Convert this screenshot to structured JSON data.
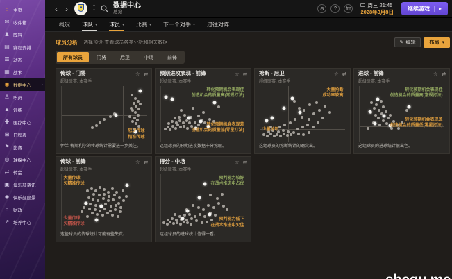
{
  "sidebar": {
    "items": [
      {
        "id": "home",
        "label": "主页",
        "icon": "⌂",
        "active": false
      },
      {
        "id": "inbox",
        "label": "收件箱",
        "icon": "✉",
        "active": false
      },
      {
        "id": "squad",
        "label": "阵容",
        "icon": "♟",
        "active": false
      },
      {
        "id": "schedule",
        "label": "赛程安排",
        "icon": "▤",
        "active": false
      },
      {
        "id": "dynamics",
        "label": "动态",
        "icon": "☰",
        "active": false
      },
      {
        "id": "tactics",
        "label": "战术",
        "icon": "▦",
        "active": false
      },
      {
        "id": "data-hub",
        "label": "数据中心",
        "icon": "◉",
        "active": true
      },
      {
        "id": "staff",
        "label": "职员",
        "icon": "♙",
        "active": false
      },
      {
        "id": "training",
        "label": "训练",
        "icon": "▲",
        "active": false
      },
      {
        "id": "medical-centre",
        "label": "医疗中心",
        "icon": "✚",
        "active": false
      },
      {
        "id": "calendar",
        "label": "日程表",
        "icon": "⊞",
        "active": false
      },
      {
        "id": "competitions",
        "label": "比赛",
        "icon": "⚑",
        "active": false
      },
      {
        "id": "scouting",
        "label": "球探中心",
        "icon": "◎",
        "active": false
      },
      {
        "id": "transfers",
        "label": "转会",
        "icon": "⇄",
        "active": false
      },
      {
        "id": "club-info",
        "label": "俱乐部资讯",
        "icon": "▣",
        "active": false
      },
      {
        "id": "club-vision",
        "label": "俱乐部愿景",
        "icon": "◈",
        "active": false
      },
      {
        "id": "finances",
        "label": "财政",
        "icon": "¤",
        "active": false
      },
      {
        "id": "development-centre",
        "label": "培养中心",
        "icon": "↗",
        "active": false
      }
    ]
  },
  "topbar": {
    "title": "数据中心",
    "subtitle": "总览",
    "icon_buttons": [
      {
        "id": "settings-icon",
        "glyph": "⚙"
      },
      {
        "id": "help-icon",
        "glyph": "?"
      },
      {
        "id": "fm-logo-icon",
        "glyph": "fm"
      }
    ],
    "datetime_line1": "周三 21:45",
    "datetime_line2": "2028年3月8日",
    "continue_label": "继续游戏",
    "continue_arrow": "▸"
  },
  "tabs": [
    {
      "label": "概况",
      "dropdown": false,
      "underline": null
    },
    {
      "label": "球队",
      "dropdown": true,
      "underline": "white"
    },
    {
      "label": "球员",
      "dropdown": true,
      "underline": "orange"
    },
    {
      "label": "比赛",
      "dropdown": true,
      "underline": null
    },
    {
      "label": "下一个对手",
      "dropdown": true,
      "underline": null
    },
    {
      "label": "过往对阵",
      "dropdown": false,
      "underline": null
    }
  ],
  "subheader": {
    "title": "球员分析",
    "description": "选择预设-查看球员各类分析和相关数据",
    "edit_label": "编辑",
    "edit_icon": "✎",
    "layout_label": "布局",
    "layout_caret": "▾"
  },
  "filters": {
    "active_index": 0,
    "options": [
      "所有球员",
      "门将",
      "后卫",
      "中场",
      "前锋"
    ]
  },
  "panel_icons": {
    "favorite": "☆",
    "expand": "⇄"
  },
  "accent_colors": {
    "orange": "#e9a43c",
    "green": "#93a860",
    "red": "#bd5348",
    "purple": "#6a4fd8"
  },
  "watermark": "shequ.me",
  "chart_data": [
    {
      "type": "scatter",
      "title": "传球 - 门将",
      "subtitle": "超级联赛, 本赛季",
      "caption": "伊兰-梅斯利尔的传球统计需要进一步关注。",
      "vline_pct": 72,
      "hline_pct": 52,
      "annotations": [
        {
          "pos": "br",
          "color": "orange",
          "lines": [
            "较少传球",
            "精准传球"
          ]
        }
      ],
      "points_gray": [
        [
          83,
          16
        ],
        [
          87,
          22
        ],
        [
          90,
          27
        ],
        [
          85,
          31
        ],
        [
          88,
          36
        ],
        [
          91,
          41
        ],
        [
          84,
          44
        ],
        [
          87,
          48
        ],
        [
          90,
          52
        ],
        [
          86,
          57
        ],
        [
          89,
          61
        ],
        [
          84,
          64
        ],
        [
          88,
          68
        ],
        [
          91,
          73
        ],
        [
          86,
          77
        ],
        [
          80,
          55
        ],
        [
          62,
          50
        ],
        [
          57,
          55
        ],
        [
          50,
          60
        ],
        [
          45,
          66
        ],
        [
          41,
          71
        ],
        [
          36,
          75
        ],
        [
          93,
          33
        ],
        [
          82,
          40
        ]
      ],
      "points_white": [
        [
          93,
          9
        ],
        [
          64,
          53
        ],
        [
          87,
          83
        ]
      ]
    },
    {
      "type": "scatter",
      "title": "预期进攻表现 - 前锋",
      "subtitle": "超级联赛, 本赛季",
      "caption": "这组球员的预期进攻数据十分抢眼。",
      "vline_pct": 28,
      "hline_pct": 62,
      "annotations": [
        {
          "pos": "tr",
          "color": "green",
          "lines": [
            "转化预期机会表现佳",
            "创造机会的质量高(常规打法)"
          ]
        },
        {
          "pos": "br2",
          "color": "orange",
          "lines": [
            "转化预期机会表现差",
            "创造机会的质量低(零星打法)"
          ]
        }
      ],
      "points_gray": [
        [
          5,
          78
        ],
        [
          8,
          74
        ],
        [
          11,
          79
        ],
        [
          14,
          72
        ],
        [
          17,
          76
        ],
        [
          20,
          70
        ],
        [
          23,
          74
        ],
        [
          9,
          68
        ],
        [
          13,
          64
        ],
        [
          18,
          66
        ],
        [
          22,
          62
        ],
        [
          26,
          66
        ],
        [
          30,
          62
        ],
        [
          34,
          66
        ],
        [
          27,
          72
        ],
        [
          31,
          76
        ],
        [
          36,
          72
        ],
        [
          40,
          66
        ],
        [
          44,
          70
        ],
        [
          48,
          62
        ],
        [
          52,
          66
        ],
        [
          57,
          60
        ],
        [
          62,
          64
        ],
        [
          35,
          56
        ],
        [
          28,
          52
        ],
        [
          21,
          56
        ],
        [
          16,
          58
        ],
        [
          44,
          54
        ],
        [
          50,
          48
        ],
        [
          24,
          44
        ],
        [
          38,
          40
        ],
        [
          68,
          38
        ]
      ],
      "points_white": [
        [
          6,
          20
        ],
        [
          13,
          24
        ],
        [
          63,
          30
        ],
        [
          33,
          58
        ],
        [
          47,
          64
        ],
        [
          56,
          72
        ],
        [
          41,
          76
        ]
      ]
    },
    {
      "type": "scatter",
      "title": "抢断 - 后卫",
      "subtitle": "超级联赛, 本赛季",
      "caption": "这组球员的抢断统计的确突出。",
      "vline_pct": 33,
      "hline_pct": 77,
      "annotations": [
        {
          "pos": "tr",
          "color": "orange",
          "lines": [
            "大量抢断",
            "成功率较高"
          ]
        },
        {
          "pos": "bl",
          "color": "orange",
          "lines": [
            "少量抢断"
          ]
        }
      ],
      "points_gray": [
        [
          4,
          88
        ],
        [
          8,
          90
        ],
        [
          12,
          86
        ],
        [
          16,
          90
        ],
        [
          20,
          87
        ],
        [
          24,
          90
        ],
        [
          28,
          86
        ],
        [
          32,
          89
        ],
        [
          36,
          87
        ],
        [
          10,
          82
        ],
        [
          15,
          80
        ],
        [
          21,
          82
        ],
        [
          27,
          80
        ],
        [
          33,
          82
        ],
        [
          39,
          84
        ],
        [
          45,
          86
        ],
        [
          51,
          88
        ],
        [
          57,
          84
        ],
        [
          44,
          78
        ],
        [
          50,
          74
        ],
        [
          56,
          70
        ],
        [
          62,
          74
        ],
        [
          68,
          66
        ],
        [
          74,
          58
        ],
        [
          57,
          60
        ],
        [
          49,
          56
        ],
        [
          41,
          60
        ],
        [
          35,
          66
        ],
        [
          29,
          70
        ],
        [
          23,
          74
        ],
        [
          63,
          50
        ],
        [
          70,
          44
        ],
        [
          52,
          44
        ],
        [
          46,
          40
        ],
        [
          58,
          34
        ],
        [
          40,
          28
        ],
        [
          76,
          36
        ],
        [
          82,
          48
        ],
        [
          66,
          30
        ],
        [
          12,
          74
        ]
      ],
      "points_white": [
        [
          38,
          22
        ],
        [
          14,
          57
        ],
        [
          7,
          63
        ],
        [
          47,
          47
        ],
        [
          28,
          40
        ]
      ]
    },
    {
      "type": "scatter",
      "title": "进球 - 前锋",
      "subtitle": "超级联赛, 本赛季",
      "caption": "这组球员的进球统计很出色。",
      "vline_pct": 35,
      "hline_pct": 72,
      "annotations": [
        {
          "pos": "tr",
          "color": "green",
          "lines": [
            "转化预期机会表现佳",
            "创造机会的质量高(常规打法)"
          ]
        },
        {
          "pos": "mr",
          "color": "orange",
          "lines": [
            "转化预期机会表现差",
            "创造机会的质量低(零星打法)"
          ]
        }
      ],
      "points_gray": [
        [
          14,
          30
        ],
        [
          20,
          34
        ],
        [
          25,
          28
        ],
        [
          17,
          40
        ],
        [
          23,
          44
        ],
        [
          28,
          38
        ],
        [
          13,
          48
        ],
        [
          19,
          52
        ],
        [
          26,
          50
        ],
        [
          31,
          46
        ],
        [
          36,
          52
        ],
        [
          22,
          58
        ],
        [
          28,
          62
        ],
        [
          34,
          58
        ],
        [
          40,
          64
        ],
        [
          16,
          66
        ],
        [
          24,
          70
        ],
        [
          32,
          68
        ],
        [
          44,
          70
        ],
        [
          50,
          66
        ],
        [
          56,
          44
        ],
        [
          10,
          76
        ],
        [
          38,
          76
        ],
        [
          46,
          76
        ]
      ],
      "points_white": [
        [
          21,
          24
        ],
        [
          12,
          46
        ],
        [
          29,
          54
        ],
        [
          18,
          68
        ],
        [
          36,
          71
        ],
        [
          58,
          38
        ]
      ]
    },
    {
      "type": "scatter",
      "title": "传球 - 前锋",
      "subtitle": "超级联赛, 本赛季",
      "caption": "这些球员的传球统计可能有些失真。",
      "vline_pct": 48,
      "hline_pct": 55,
      "annotations": [
        {
          "pos": "tl",
          "color": "orange",
          "lines": [
            "大量传球",
            "欠精准传球"
          ]
        },
        {
          "pos": "bl2",
          "color": "red",
          "lines": [
            "少量传球",
            "欠精准传球"
          ]
        }
      ],
      "points_gray": [
        [
          30,
          30
        ],
        [
          35,
          26
        ],
        [
          40,
          30
        ],
        [
          45,
          24
        ],
        [
          50,
          28
        ],
        [
          55,
          32
        ],
        [
          60,
          26
        ],
        [
          65,
          32
        ],
        [
          38,
          36
        ],
        [
          44,
          38
        ],
        [
          50,
          36
        ],
        [
          56,
          40
        ],
        [
          62,
          38
        ],
        [
          68,
          42
        ],
        [
          32,
          42
        ],
        [
          37,
          46
        ],
        [
          43,
          48
        ],
        [
          49,
          44
        ],
        [
          55,
          48
        ],
        [
          61,
          46
        ],
        [
          67,
          52
        ],
        [
          73,
          48
        ],
        [
          28,
          52
        ],
        [
          34,
          54
        ],
        [
          40,
          56
        ],
        [
          46,
          58
        ],
        [
          52,
          54
        ],
        [
          58,
          58
        ],
        [
          64,
          56
        ],
        [
          70,
          60
        ],
        [
          26,
          60
        ],
        [
          33,
          62
        ],
        [
          39,
          64
        ],
        [
          45,
          66
        ],
        [
          51,
          62
        ],
        [
          57,
          66
        ],
        [
          63,
          64
        ],
        [
          69,
          68
        ],
        [
          36,
          70
        ],
        [
          42,
          72
        ],
        [
          48,
          74
        ],
        [
          54,
          70
        ],
        [
          60,
          74
        ],
        [
          30,
          76
        ],
        [
          66,
          76
        ],
        [
          24,
          68
        ],
        [
          76,
          40
        ],
        [
          72,
          30
        ]
      ],
      "points_white": [
        [
          77,
          20
        ],
        [
          29,
          53
        ],
        [
          47,
          57
        ],
        [
          41,
          83
        ]
      ]
    },
    {
      "type": "scatter",
      "title": "得分 - 中场",
      "subtitle": "超级联赛, 本赛季",
      "caption": "这组球员的进球统计值得一看。",
      "vline_pct": 30,
      "hline_pct": 80,
      "annotations": [
        {
          "pos": "tr",
          "color": "green",
          "lines": [
            "预判能力较好",
            "在战术推进中占优"
          ]
        },
        {
          "pos": "br",
          "color": "orange",
          "lines": [
            "预判能力低下",
            "在战术推进中欠佳"
          ]
        }
      ],
      "points_gray": [
        [
          3,
          88
        ],
        [
          7,
          90
        ],
        [
          11,
          86
        ],
        [
          15,
          89
        ],
        [
          19,
          87
        ],
        [
          23,
          90
        ],
        [
          27,
          86
        ],
        [
          31,
          88
        ],
        [
          35,
          90
        ],
        [
          8,
          82
        ],
        [
          13,
          80
        ],
        [
          18,
          83
        ],
        [
          24,
          81
        ],
        [
          30,
          83
        ],
        [
          36,
          80
        ],
        [
          42,
          84
        ],
        [
          48,
          88
        ],
        [
          54,
          86
        ],
        [
          60,
          82
        ],
        [
          40,
          76
        ],
        [
          34,
          72
        ],
        [
          28,
          74
        ],
        [
          22,
          76
        ],
        [
          46,
          72
        ],
        [
          52,
          76
        ],
        [
          58,
          70
        ],
        [
          64,
          74
        ],
        [
          50,
          64
        ],
        [
          44,
          60
        ],
        [
          38,
          56
        ],
        [
          56,
          56
        ],
        [
          62,
          60
        ],
        [
          68,
          52
        ],
        [
          74,
          58
        ],
        [
          66,
          44
        ],
        [
          58,
          38
        ],
        [
          72,
          36
        ],
        [
          30,
          64
        ],
        [
          16,
          72
        ],
        [
          78,
          64
        ]
      ],
      "points_white": [
        [
          52,
          17
        ],
        [
          45,
          42
        ],
        [
          31,
          66
        ],
        [
          57,
          73
        ],
        [
          25,
          80
        ]
      ]
    }
  ]
}
